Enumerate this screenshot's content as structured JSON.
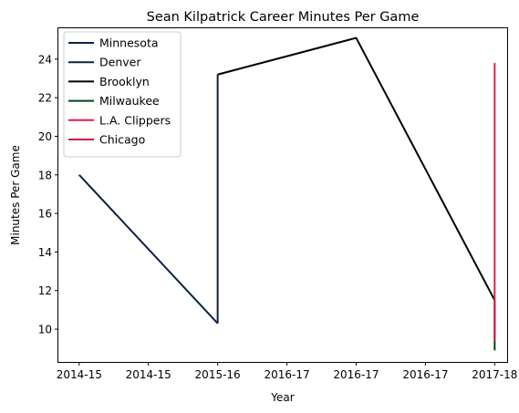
{
  "chart_data": {
    "type": "line",
    "title": "Sean Kilpatrick Career Minutes Per Game",
    "xlabel": "Year",
    "ylabel": "Minutes Per Game",
    "x_tick_labels": [
      "2014-15",
      "2014-15",
      "2015-16",
      "2016-17",
      "2016-17",
      "2016-17",
      "2017-18"
    ],
    "x_tick_positions": [
      0,
      1,
      2,
      3,
      4,
      5,
      6
    ],
    "xlim": [
      -0.3,
      6.18
    ],
    "ylim": [
      8.3,
      25.6
    ],
    "y_ticks": [
      10,
      12,
      14,
      16,
      18,
      20,
      22,
      24
    ],
    "grid": false,
    "legend_position": "top-left",
    "series": [
      {
        "name": "Minnesota",
        "color": "#0c2340",
        "points": [
          [
            0,
            18.0
          ],
          [
            2,
            10.3
          ]
        ]
      },
      {
        "name": "Denver",
        "color": "#0e2240",
        "points": [
          [
            2,
            10.3
          ],
          [
            2,
            23.2
          ]
        ]
      },
      {
        "name": "Brooklyn",
        "color": "#000000",
        "points": [
          [
            2,
            23.2
          ],
          [
            4,
            25.1
          ],
          [
            6,
            11.5
          ]
        ]
      },
      {
        "name": "Milwaukee",
        "color": "#00471b",
        "points": [
          [
            6,
            8.9
          ],
          [
            6,
            9.4
          ]
        ]
      },
      {
        "name": "L.A. Clippers",
        "color": "#e41a4a",
        "points": [
          [
            6,
            9.4
          ],
          [
            6,
            23.8
          ]
        ]
      },
      {
        "name": "Chicago",
        "color": "#ce1141",
        "points": [
          [
            6,
            9.4
          ],
          [
            6,
            11.5
          ]
        ]
      }
    ]
  }
}
